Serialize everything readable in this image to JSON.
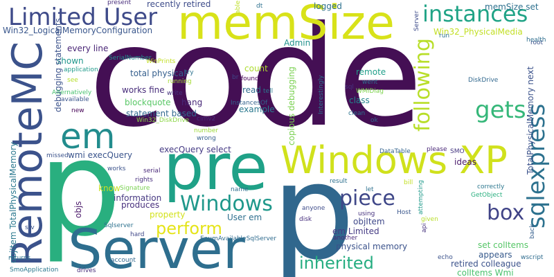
{
  "word_cloud": {
    "background": "#ffffff",
    "words": [
      {
        "text": "code",
        "color": "#440f54"
      },
      {
        "text": "p",
        "color": "#30678d"
      },
      {
        "text": "p",
        "color": "#29af7f"
      },
      {
        "text": "pre",
        "color": "#1fa187"
      },
      {
        "text": "Server",
        "color": "#2e6e8e"
      },
      {
        "text": "RemoteMC",
        "color": "#3b528b"
      },
      {
        "text": "memSize",
        "color": "#d8e219"
      },
      {
        "text": "Windows XP",
        "color": "#d0e11c"
      },
      {
        "text": "Limited User",
        "color": "#3e4a89"
      },
      {
        "text": "instances",
        "color": "#20a386"
      },
      {
        "text": "em",
        "color": "#228c8d"
      },
      {
        "text": "sqlexpress",
        "color": "#2c718e"
      },
      {
        "text": "gets",
        "color": "#35b779"
      },
      {
        "text": "following",
        "color": "#b8de29"
      },
      {
        "text": "Windows",
        "color": "#1f988b"
      },
      {
        "text": "piece",
        "color": "#3f4788"
      },
      {
        "text": "box",
        "color": "#404387"
      },
      {
        "text": "perform",
        "color": "#e5e419"
      },
      {
        "text": "inherited",
        "color": "#26ad81"
      },
      {
        "text": "memSize set",
        "color": "#2d708e"
      },
      {
        "text": "Win32_LogicalMemoryConfiguration",
        "color": "#39568c"
      },
      {
        "text": "Win32_PhysicalMedia",
        "color": "#c2df23"
      },
      {
        "text": "TotalPhysicalMemory next",
        "color": "#3b528b"
      },
      {
        "text": "every line",
        "color": "#482475"
      },
      {
        "text": "shown",
        "color": "#1f968b"
      },
      {
        "text": "total physical",
        "color": "#355f8d"
      },
      {
        "text": "works fine",
        "color": "#472c7a"
      },
      {
        "text": "blockquote",
        "color": "#58c765"
      },
      {
        "text": "hang",
        "color": "#482878"
      },
      {
        "text": "statement based",
        "color": "#31688e"
      },
      {
        "text": "execQuery select",
        "color": "#443983"
      },
      {
        "text": "wmi execQuery",
        "color": "#3a548c"
      },
      {
        "text": "copious debugging",
        "color": "#7ad151"
      },
      {
        "text": "example",
        "color": "#2a788e"
      },
      {
        "text": "class",
        "color": "#24868e"
      },
      {
        "text": "read",
        "color": "#2f6c8e"
      },
      {
        "text": "count",
        "color": "#addc30"
      },
      {
        "text": "Admin",
        "color": "#21918c"
      },
      {
        "text": "remote",
        "color": "#1f9e89"
      },
      {
        "text": "physical memory",
        "color": "#3b528b"
      },
      {
        "text": "em Limited",
        "color": "#443a83"
      },
      {
        "text": "objItem",
        "color": "#3f4889"
      },
      {
        "text": "User em",
        "color": "#2e6f8e"
      },
      {
        "text": "property",
        "color": "#d2e21b"
      },
      {
        "text": "produces",
        "color": "#472f7d"
      },
      {
        "text": "information",
        "color": "#453781"
      },
      {
        "text": "know",
        "color": "#c8e020"
      },
      {
        "text": "objs",
        "color": "#481668"
      },
      {
        "text": "set colItems",
        "color": "#56c667"
      },
      {
        "text": "appears",
        "color": "#375a8c"
      },
      {
        "text": "retired colleague",
        "color": "#3b528b"
      },
      {
        "text": "colItems Wmi",
        "color": "#4ac16d"
      },
      {
        "text": "ideas",
        "color": "#48186a"
      },
      {
        "text": "objItem TotalPhysicalMemory",
        "color": "#2a788e"
      },
      {
        "text": "debugging statements",
        "color": "#3b528b"
      },
      {
        "text": "recently retired",
        "color": "#3e4c8a"
      },
      {
        "text": "logged",
        "color": "#2d708e"
      },
      {
        "text": "Win32_DiskDrive",
        "color": "#8bd646"
      },
      {
        "text": "DiskDrive",
        "color": "#31688e"
      },
      {
        "text": "WMIDiag",
        "color": "#7fd34e"
      },
      {
        "text": "Interestingly",
        "color": "#2c728e"
      },
      {
        "text": "InstancesOf",
        "color": "#33638d"
      },
      {
        "text": "cimv2",
        "color": "#472c7a"
      },
      {
        "text": "wrong",
        "color": "#35608d"
      },
      {
        "text": "number",
        "color": "#9dd93b"
      },
      {
        "text": "found",
        "color": "#440154"
      },
      {
        "text": "went",
        "color": "#2f6c8e"
      },
      {
        "text": "sql",
        "color": "#46327e"
      },
      {
        "text": "ok",
        "color": "#31688e"
      },
      {
        "text": "clean",
        "color": "#2c728e"
      },
      {
        "text": "tell",
        "color": "#2a788e"
      },
      {
        "text": "br",
        "color": "#3f4788"
      },
      {
        "text": "running",
        "color": "#a5db36"
      },
      {
        "text": "write",
        "color": "#46337e"
      },
      {
        "text": "try",
        "color": "#2c728e"
      },
      {
        "text": "application",
        "color": "#1f9a8a"
      },
      {
        "text": "Alternatively",
        "color": "#48c16e"
      },
      {
        "text": "available",
        "color": "#39558c"
      },
      {
        "text": "see",
        "color": "#b5de2b"
      },
      {
        "text": "new",
        "color": "#440154"
      },
      {
        "text": "WinPrints",
        "color": "#c2df23"
      },
      {
        "text": "SerialNumber",
        "color": "#21908d"
      },
      {
        "text": "present",
        "color": "#472d7b"
      },
      {
        "text": "dt",
        "color": "#2d708e"
      },
      {
        "text": "able",
        "color": "#bddf26"
      },
      {
        "text": "drives",
        "color": "#472c7a"
      },
      {
        "text": "SMO",
        "color": "#453781"
      },
      {
        "text": "DataTable",
        "color": "#33638d"
      },
      {
        "text": "please",
        "color": "#482576"
      },
      {
        "text": "missed",
        "color": "#3b528b"
      },
      {
        "text": "works",
        "color": "#3b528b"
      },
      {
        "text": "serial",
        "color": "#482878"
      },
      {
        "text": "rights",
        "color": "#472f7d"
      },
      {
        "text": "Signature",
        "color": "#7ad151"
      },
      {
        "text": "name",
        "color": "#2e6e8e"
      },
      {
        "text": "result",
        "color": "#2d708e"
      },
      {
        "text": "let",
        "color": "#2d708e"
      },
      {
        "text": "bill",
        "color": "#c2df23"
      },
      {
        "text": "attempting",
        "color": "#1f9a8a"
      },
      {
        "text": "correctly",
        "color": "#2a768e"
      },
      {
        "text": "GetObject",
        "color": "#29af7f"
      },
      {
        "text": "anyone",
        "color": "#3e4c8a"
      },
      {
        "text": "using",
        "color": "#46327e"
      },
      {
        "text": "Host",
        "color": "#39568c"
      },
      {
        "text": "given",
        "color": "#b8de29"
      },
      {
        "text": "Sqlserver",
        "color": "#2c718e"
      },
      {
        "text": "hard",
        "color": "#3f4788"
      },
      {
        "text": "EnumAvailableSqlServer",
        "color": "#2f6b8e"
      },
      {
        "text": "disk",
        "color": "#472f7d"
      },
      {
        "text": "another",
        "color": "#482878"
      },
      {
        "text": "api",
        "color": "#46337e"
      },
      {
        "text": "back",
        "color": "#355f8d"
      },
      {
        "text": "echo",
        "color": "#3b528b"
      },
      {
        "text": "wscript",
        "color": "#2f6c8e"
      },
      {
        "text": "account",
        "color": "#31688e"
      },
      {
        "text": "returns",
        "color": "#2c718e"
      },
      {
        "text": "SmoApplication",
        "color": "#2a778e"
      },
      {
        "text": "srv",
        "color": "#3b528b"
      },
      {
        "text": "run",
        "color": "#2c718e"
      },
      {
        "text": "root",
        "color": "#3b528b"
      },
      {
        "text": "health",
        "color": "#2e6e8e"
      },
      {
        "text": "Server",
        "color": "#3e4c8a"
      }
    ]
  }
}
